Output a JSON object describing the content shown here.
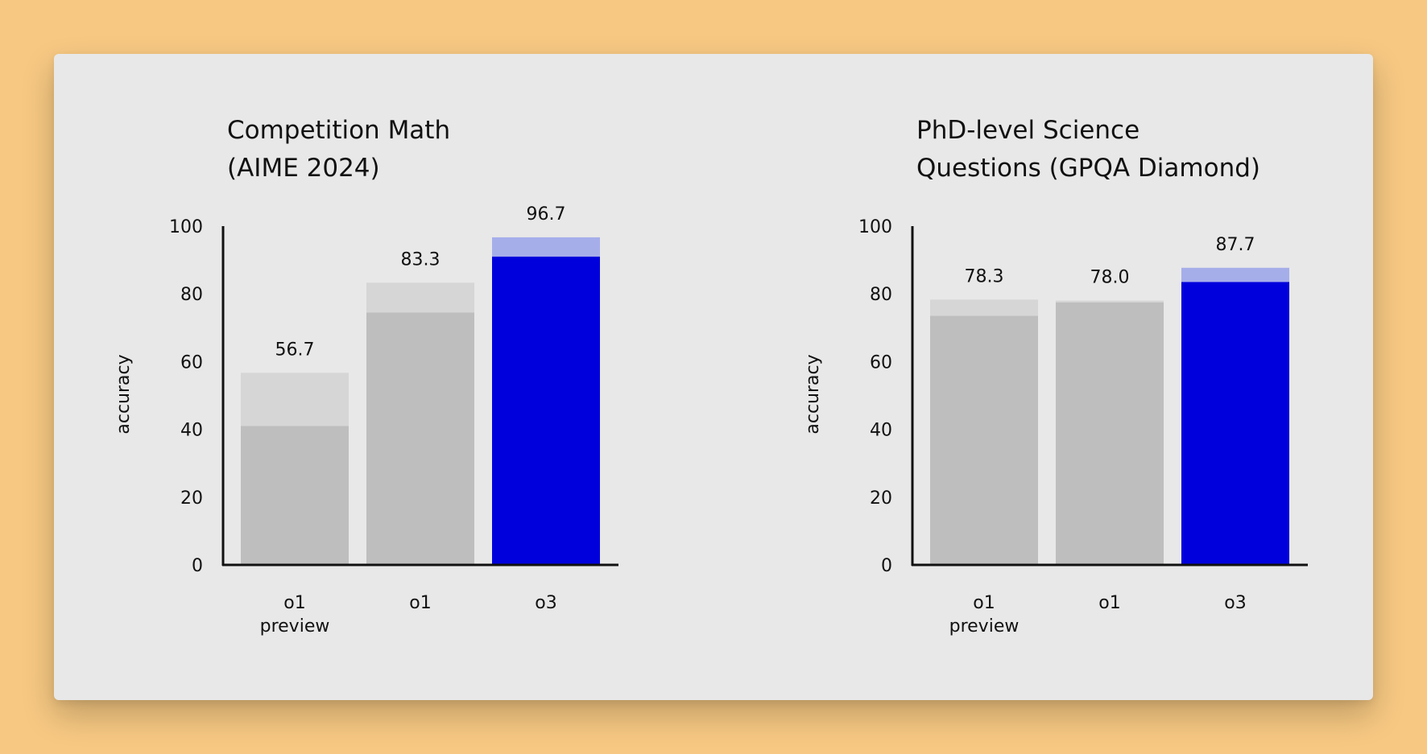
{
  "colors": {
    "page_background": "#F6C882",
    "card_background": "#E8E8E8",
    "bar_gray_base": "#BEBEBE",
    "bar_gray_extension": "#D6D6D6",
    "bar_blue_base": "#0000DC",
    "bar_blue_extension": "#A6AEEA",
    "axis": "#111111"
  },
  "chart_data": [
    {
      "type": "bar",
      "title_lines": [
        "Competition Math",
        "(AIME 2024)"
      ],
      "ylabel": "accuracy",
      "ylim": [
        0,
        100
      ],
      "yticks": [
        0,
        20,
        40,
        60,
        80,
        100
      ],
      "categories": [
        "o1 preview",
        "o1",
        "o3"
      ],
      "category_label_lines": [
        [
          "o1",
          "preview"
        ],
        [
          "o1"
        ],
        [
          "o3"
        ]
      ],
      "values": [
        56.7,
        83.3,
        96.7
      ],
      "value_labels": [
        "56.7",
        "83.3",
        "96.7"
      ],
      "base_values": [
        41,
        74.5,
        91
      ],
      "highlight": [
        false,
        false,
        true
      ]
    },
    {
      "type": "bar",
      "title_lines": [
        "PhD-level Science",
        "Questions (GPQA Diamond)"
      ],
      "ylabel": "accuracy",
      "ylim": [
        0,
        100
      ],
      "yticks": [
        0,
        20,
        40,
        60,
        80,
        100
      ],
      "categories": [
        "o1 preview",
        "o1",
        "o3"
      ],
      "category_label_lines": [
        [
          "o1",
          "preview"
        ],
        [
          "o1"
        ],
        [
          "o3"
        ]
      ],
      "values": [
        78.3,
        78.0,
        87.7
      ],
      "value_labels": [
        "78.3",
        "78.0",
        "87.7"
      ],
      "base_values": [
        73.5,
        77.5,
        83.5
      ],
      "highlight": [
        false,
        false,
        true
      ]
    }
  ]
}
